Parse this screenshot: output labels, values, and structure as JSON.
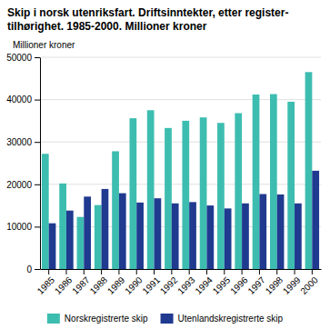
{
  "chart_data": {
    "type": "bar",
    "title": "Skip i norsk utenriksfart. Driftsinntekter, etter register-\ntilhørighet. 1985-2000. Millioner kroner",
    "y_label": "Millioner kroner",
    "categories": [
      "1985",
      "1986",
      "1987",
      "1988",
      "1989",
      "1990",
      "1991",
      "1992",
      "1993",
      "1994",
      "1995",
      "1996",
      "1997",
      "1998",
      "1999",
      "2000"
    ],
    "series": [
      {
        "name": "Norskregistrerte skip",
        "color": "#3dbdb0",
        "values": [
          27200,
          20200,
          12300,
          15100,
          27800,
          35600,
          37500,
          33300,
          35000,
          35800,
          34500,
          36800,
          41200,
          41300,
          39500,
          46500
        ]
      },
      {
        "name": "Utenlandskregistrerte skip",
        "color": "#1f3a8f",
        "values": [
          10800,
          13800,
          17100,
          18900,
          17900,
          15700,
          16700,
          15500,
          15800,
          15000,
          14300,
          15500,
          17700,
          17600,
          15500,
          23200
        ]
      }
    ],
    "ylim": [
      0,
      50000
    ],
    "yticks": [
      0,
      10000,
      20000,
      30000,
      40000,
      50000
    ],
    "grid": true,
    "legend": "bottom"
  }
}
